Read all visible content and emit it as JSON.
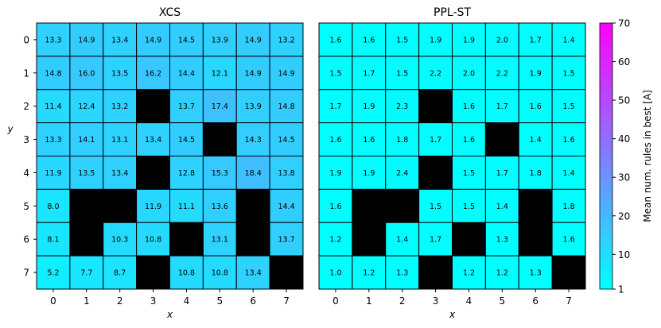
{
  "chart_data": [
    {
      "type": "heatmap",
      "title": "XCS",
      "xlabel": "x",
      "ylabel": "y",
      "x": [
        0,
        1,
        2,
        3,
        4,
        5,
        6,
        7
      ],
      "y": [
        0,
        1,
        2,
        3,
        4,
        5,
        6,
        7
      ],
      "values": [
        [
          13.3,
          14.9,
          13.4,
          14.9,
          14.5,
          13.9,
          14.9,
          13.2
        ],
        [
          14.8,
          16.0,
          13.5,
          16.2,
          14.4,
          12.1,
          14.9,
          14.9
        ],
        [
          11.4,
          12.4,
          13.2,
          null,
          13.7,
          17.4,
          13.9,
          14.8
        ],
        [
          13.3,
          14.1,
          13.1,
          13.4,
          14.5,
          null,
          14.3,
          14.5
        ],
        [
          11.9,
          13.5,
          13.4,
          null,
          12.8,
          15.3,
          18.4,
          13.8
        ],
        [
          8.0,
          null,
          null,
          11.9,
          11.1,
          13.6,
          null,
          14.4
        ],
        [
          8.1,
          null,
          10.3,
          10.8,
          null,
          13.1,
          null,
          13.7
        ],
        [
          5.2,
          7.7,
          8.7,
          null,
          10.8,
          10.8,
          13.4,
          null
        ]
      ],
      "null_color": "#000000"
    },
    {
      "type": "heatmap",
      "title": "PPL-ST",
      "xlabel": "x",
      "ylabel": "",
      "x": [
        0,
        1,
        2,
        3,
        4,
        5,
        6,
        7
      ],
      "y": [
        0,
        1,
        2,
        3,
        4,
        5,
        6,
        7
      ],
      "values": [
        [
          1.6,
          1.6,
          1.5,
          1.9,
          1.9,
          2.0,
          1.7,
          1.4
        ],
        [
          1.5,
          1.7,
          1.5,
          2.2,
          2.0,
          2.2,
          1.9,
          1.5
        ],
        [
          1.7,
          1.9,
          2.3,
          null,
          1.6,
          1.7,
          1.6,
          1.5
        ],
        [
          1.6,
          1.6,
          1.8,
          1.7,
          1.6,
          null,
          1.4,
          1.6
        ],
        [
          1.9,
          1.9,
          2.4,
          null,
          1.5,
          1.7,
          1.8,
          1.4
        ],
        [
          1.6,
          null,
          null,
          1.5,
          1.5,
          1.4,
          null,
          1.8
        ],
        [
          1.2,
          null,
          1.4,
          1.7,
          null,
          1.3,
          null,
          1.6
        ],
        [
          1.0,
          1.2,
          1.3,
          null,
          1.2,
          1.2,
          1.3,
          null
        ]
      ],
      "null_color": "#000000"
    }
  ],
  "colorbar": {
    "colormap": "cool",
    "color_start": "#00ffff",
    "color_end": "#ff00ff",
    "vmin": 1,
    "vmax": 70,
    "ticks": [
      1,
      10,
      20,
      30,
      40,
      50,
      60,
      70
    ],
    "label": "Mean num. rules in best [A]"
  }
}
